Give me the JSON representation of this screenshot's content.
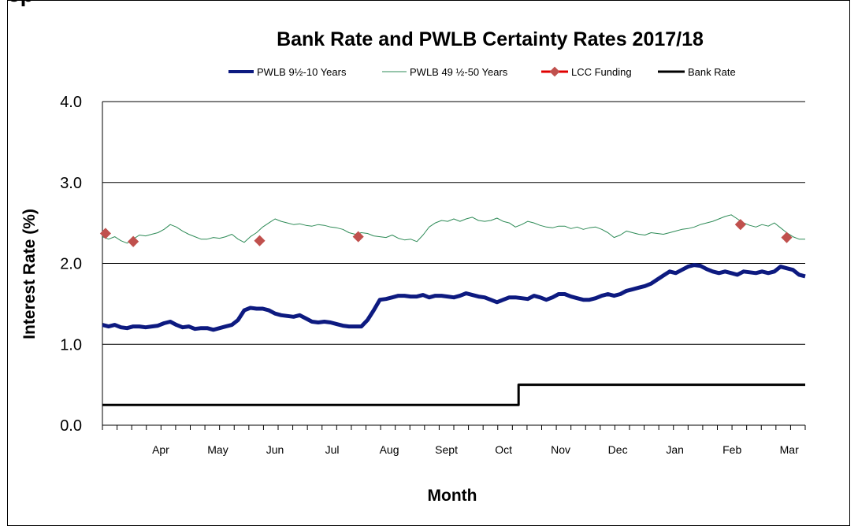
{
  "corner_text": "ep",
  "chart_data": {
    "type": "line",
    "title": "Bank Rate and PWLB Certainty Rates 2017/18",
    "xlabel": "Month",
    "ylabel": "Interest Rate (%)",
    "ylim": [
      0,
      4
    ],
    "yticks": [
      "0.0",
      "1.0",
      "2.0",
      "3.0",
      "4.0"
    ],
    "grid": true,
    "legend_position": "top",
    "months": [
      "Apr",
      "May",
      "Jun",
      "Jul",
      "Aug",
      "Sept",
      "Oct",
      "Nov",
      "Dec",
      "Jan",
      "Feb",
      "Mar"
    ],
    "colors": {
      "pwlb10": "#0d1a80",
      "pwlb50": "#2e8b57",
      "lcc_line": "#e00000",
      "lcc_marker": "#c0504d",
      "bank": "#000000"
    },
    "series": [
      {
        "key": "pwlb10",
        "name": "PWLB 9½-10 Years",
        "points": [
          [
            0,
            1.24
          ],
          [
            0.2,
            1.22
          ],
          [
            0.4,
            1.24
          ],
          [
            0.6,
            1.21
          ],
          [
            0.8,
            1.2
          ],
          [
            1.0,
            1.22
          ],
          [
            1.2,
            1.22
          ],
          [
            1.4,
            1.21
          ],
          [
            1.6,
            1.22
          ],
          [
            1.8,
            1.23
          ],
          [
            2.0,
            1.26
          ],
          [
            2.2,
            1.28
          ],
          [
            2.4,
            1.24
          ],
          [
            2.6,
            1.21
          ],
          [
            2.8,
            1.22
          ],
          [
            3.0,
            1.19
          ],
          [
            3.2,
            1.2
          ],
          [
            3.4,
            1.2
          ],
          [
            3.6,
            1.18
          ],
          [
            3.8,
            1.2
          ],
          [
            4.0,
            1.22
          ],
          [
            4.2,
            1.24
          ],
          [
            4.4,
            1.3
          ],
          [
            4.6,
            1.42
          ],
          [
            4.8,
            1.45
          ],
          [
            5.0,
            1.44
          ],
          [
            5.2,
            1.44
          ],
          [
            5.4,
            1.42
          ],
          [
            5.6,
            1.38
          ],
          [
            5.8,
            1.36
          ],
          [
            6.0,
            1.35
          ],
          [
            6.2,
            1.34
          ],
          [
            6.4,
            1.36
          ],
          [
            6.6,
            1.32
          ],
          [
            6.8,
            1.28
          ],
          [
            7.0,
            1.27
          ],
          [
            7.2,
            1.28
          ],
          [
            7.4,
            1.27
          ],
          [
            7.6,
            1.25
          ],
          [
            7.8,
            1.23
          ],
          [
            8.0,
            1.22
          ],
          [
            8.2,
            1.22
          ],
          [
            8.4,
            1.22
          ],
          [
            8.6,
            1.3
          ],
          [
            8.8,
            1.42
          ],
          [
            9.0,
            1.55
          ],
          [
            9.2,
            1.56
          ],
          [
            9.4,
            1.58
          ],
          [
            9.6,
            1.6
          ],
          [
            9.8,
            1.6
          ],
          [
            10.0,
            1.59
          ],
          [
            10.2,
            1.59
          ],
          [
            10.4,
            1.61
          ],
          [
            10.6,
            1.58
          ],
          [
            10.8,
            1.6
          ],
          [
            11.0,
            1.6
          ],
          [
            11.2,
            1.59
          ],
          [
            11.4,
            1.58
          ],
          [
            11.6,
            1.6
          ],
          [
            11.8,
            1.63
          ],
          [
            12.0,
            1.61
          ],
          [
            12.2,
            1.59
          ],
          [
            12.4,
            1.58
          ],
          [
            12.6,
            1.55
          ],
          [
            12.8,
            1.52
          ],
          [
            13.0,
            1.55
          ],
          [
            13.2,
            1.58
          ],
          [
            13.4,
            1.58
          ],
          [
            13.6,
            1.57
          ],
          [
            13.8,
            1.56
          ],
          [
            14.0,
            1.6
          ],
          [
            14.2,
            1.58
          ],
          [
            14.4,
            1.55
          ],
          [
            14.6,
            1.58
          ],
          [
            14.8,
            1.62
          ],
          [
            15.0,
            1.62
          ],
          [
            15.2,
            1.59
          ],
          [
            15.4,
            1.57
          ],
          [
            15.6,
            1.55
          ],
          [
            15.8,
            1.55
          ],
          [
            16.0,
            1.57
          ],
          [
            16.2,
            1.6
          ],
          [
            16.4,
            1.62
          ],
          [
            16.6,
            1.6
          ],
          [
            16.8,
            1.62
          ],
          [
            17.0,
            1.66
          ],
          [
            17.2,
            1.68
          ],
          [
            17.4,
            1.7
          ],
          [
            17.6,
            1.72
          ],
          [
            17.8,
            1.75
          ],
          [
            18.0,
            1.8
          ],
          [
            18.2,
            1.85
          ],
          [
            18.4,
            1.9
          ],
          [
            18.6,
            1.88
          ],
          [
            18.8,
            1.92
          ],
          [
            19.0,
            1.96
          ],
          [
            19.2,
            1.98
          ],
          [
            19.4,
            1.97
          ],
          [
            19.6,
            1.93
          ],
          [
            19.8,
            1.9
          ],
          [
            20.0,
            1.88
          ],
          [
            20.2,
            1.9
          ],
          [
            20.4,
            1.88
          ],
          [
            20.6,
            1.86
          ],
          [
            20.8,
            1.9
          ],
          [
            21.0,
            1.89
          ],
          [
            21.2,
            1.88
          ],
          [
            21.4,
            1.9
          ],
          [
            21.6,
            1.88
          ],
          [
            21.8,
            1.9
          ],
          [
            22.0,
            1.96
          ],
          [
            22.2,
            1.94
          ],
          [
            22.4,
            1.92
          ],
          [
            22.6,
            1.86
          ],
          [
            22.8,
            1.84
          ]
        ]
      },
      {
        "key": "pwlb50",
        "name": "PWLB 49 ½-50 Years",
        "points": [
          [
            0,
            2.33
          ],
          [
            0.2,
            2.3
          ],
          [
            0.4,
            2.33
          ],
          [
            0.6,
            2.28
          ],
          [
            0.8,
            2.25
          ],
          [
            1.0,
            2.3
          ],
          [
            1.2,
            2.35
          ],
          [
            1.4,
            2.34
          ],
          [
            1.6,
            2.36
          ],
          [
            1.8,
            2.38
          ],
          [
            2.0,
            2.42
          ],
          [
            2.2,
            2.48
          ],
          [
            2.4,
            2.45
          ],
          [
            2.6,
            2.4
          ],
          [
            2.8,
            2.36
          ],
          [
            3.0,
            2.33
          ],
          [
            3.2,
            2.3
          ],
          [
            3.4,
            2.3
          ],
          [
            3.6,
            2.32
          ],
          [
            3.8,
            2.31
          ],
          [
            4.0,
            2.33
          ],
          [
            4.2,
            2.36
          ],
          [
            4.4,
            2.3
          ],
          [
            4.6,
            2.26
          ],
          [
            4.8,
            2.33
          ],
          [
            5.0,
            2.38
          ],
          [
            5.2,
            2.45
          ],
          [
            5.4,
            2.5
          ],
          [
            5.6,
            2.55
          ],
          [
            5.8,
            2.52
          ],
          [
            6.0,
            2.5
          ],
          [
            6.2,
            2.48
          ],
          [
            6.4,
            2.49
          ],
          [
            6.6,
            2.47
          ],
          [
            6.8,
            2.46
          ],
          [
            7.0,
            2.48
          ],
          [
            7.2,
            2.47
          ],
          [
            7.4,
            2.45
          ],
          [
            7.6,
            2.44
          ],
          [
            7.8,
            2.42
          ],
          [
            8.0,
            2.38
          ],
          [
            8.2,
            2.36
          ],
          [
            8.4,
            2.38
          ],
          [
            8.6,
            2.37
          ],
          [
            8.8,
            2.34
          ],
          [
            9.0,
            2.33
          ],
          [
            9.2,
            2.32
          ],
          [
            9.4,
            2.35
          ],
          [
            9.6,
            2.31
          ],
          [
            9.8,
            2.29
          ],
          [
            10.0,
            2.3
          ],
          [
            10.2,
            2.27
          ],
          [
            10.4,
            2.35
          ],
          [
            10.6,
            2.45
          ],
          [
            10.8,
            2.5
          ],
          [
            11.0,
            2.53
          ],
          [
            11.2,
            2.52
          ],
          [
            11.4,
            2.55
          ],
          [
            11.6,
            2.52
          ],
          [
            11.8,
            2.55
          ],
          [
            12.0,
            2.57
          ],
          [
            12.2,
            2.53
          ],
          [
            12.4,
            2.52
          ],
          [
            12.6,
            2.53
          ],
          [
            12.8,
            2.56
          ],
          [
            13.0,
            2.52
          ],
          [
            13.2,
            2.5
          ],
          [
            13.4,
            2.45
          ],
          [
            13.6,
            2.48
          ],
          [
            13.8,
            2.52
          ],
          [
            14.0,
            2.5
          ],
          [
            14.2,
            2.47
          ],
          [
            14.4,
            2.45
          ],
          [
            14.6,
            2.44
          ],
          [
            14.8,
            2.46
          ],
          [
            15.0,
            2.46
          ],
          [
            15.2,
            2.43
          ],
          [
            15.4,
            2.45
          ],
          [
            15.6,
            2.42
          ],
          [
            15.8,
            2.44
          ],
          [
            16.0,
            2.45
          ],
          [
            16.2,
            2.42
          ],
          [
            16.4,
            2.38
          ],
          [
            16.6,
            2.32
          ],
          [
            16.8,
            2.35
          ],
          [
            17.0,
            2.4
          ],
          [
            17.2,
            2.38
          ],
          [
            17.4,
            2.36
          ],
          [
            17.6,
            2.35
          ],
          [
            17.8,
            2.38
          ],
          [
            18.0,
            2.37
          ],
          [
            18.2,
            2.36
          ],
          [
            18.4,
            2.38
          ],
          [
            18.6,
            2.4
          ],
          [
            18.8,
            2.42
          ],
          [
            19.0,
            2.43
          ],
          [
            19.2,
            2.45
          ],
          [
            19.4,
            2.48
          ],
          [
            19.6,
            2.5
          ],
          [
            19.8,
            2.52
          ],
          [
            20.0,
            2.55
          ],
          [
            20.2,
            2.58
          ],
          [
            20.4,
            2.6
          ],
          [
            20.6,
            2.55
          ],
          [
            20.8,
            2.5
          ],
          [
            21.0,
            2.47
          ],
          [
            21.2,
            2.45
          ],
          [
            21.4,
            2.48
          ],
          [
            21.6,
            2.46
          ],
          [
            21.8,
            2.5
          ],
          [
            22.0,
            2.44
          ],
          [
            22.2,
            2.38
          ],
          [
            22.4,
            2.33
          ],
          [
            22.6,
            2.3
          ],
          [
            22.8,
            2.3
          ]
        ]
      },
      {
        "key": "lcc",
        "name": "LCC Funding",
        "points": [
          [
            0.1,
            2.37
          ],
          [
            1.0,
            2.27
          ],
          [
            5.1,
            2.28
          ],
          [
            8.3,
            2.33
          ],
          [
            20.7,
            2.48
          ],
          [
            22.2,
            2.32
          ]
        ]
      },
      {
        "key": "bank",
        "name": "Bank Rate",
        "points": [
          [
            0,
            0.25
          ],
          [
            13.5,
            0.25
          ],
          [
            13.5,
            0.5
          ],
          [
            22.8,
            0.5
          ]
        ]
      }
    ]
  }
}
